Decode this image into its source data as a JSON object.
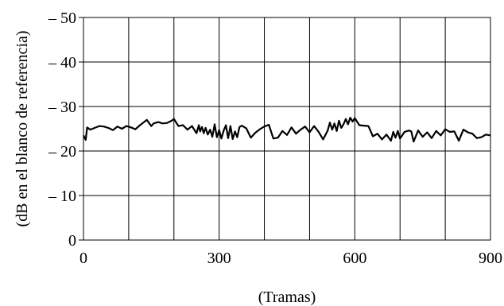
{
  "chart_data": {
    "type": "line",
    "title": "",
    "xlabel": "(Tramas)",
    "ylabel": "(dB en el blanco de referencia)",
    "xlim": [
      0,
      900
    ],
    "ylim": [
      0,
      -50
    ],
    "grid": true,
    "x_ticks": [
      {
        "value": 0,
        "label": "0"
      },
      {
        "value": 300,
        "label": "300"
      },
      {
        "value": 600,
        "label": "600"
      },
      {
        "value": 900,
        "label": "900"
      }
    ],
    "y_ticks": [
      {
        "value": 0,
        "label": "0"
      },
      {
        "value": -10,
        "label": "– 10"
      },
      {
        "value": -20,
        "label": "– 20"
      },
      {
        "value": -30,
        "label": "– 30"
      },
      {
        "value": -40,
        "label": "– 40"
      },
      {
        "value": -50,
        "label": "– 50"
      }
    ],
    "series": [
      {
        "color": "#000000",
        "x": [
          0,
          5,
          8,
          15,
          25,
          35,
          45,
          55,
          65,
          75,
          85,
          95,
          105,
          115,
          125,
          130,
          140,
          150,
          155,
          165,
          175,
          185,
          195,
          200,
          210,
          220,
          230,
          240,
          250,
          255,
          258,
          262,
          266,
          270,
          275,
          280,
          285,
          290,
          295,
          300,
          305,
          310,
          315,
          320,
          325,
          330,
          335,
          340,
          345,
          350,
          360,
          370,
          380,
          390,
          400,
          410,
          420,
          430,
          440,
          450,
          460,
          470,
          480,
          490,
          500,
          510,
          520,
          530,
          540,
          545,
          550,
          555,
          560,
          565,
          570,
          575,
          580,
          585,
          590,
          595,
          600,
          610,
          620,
          630,
          640,
          650,
          660,
          670,
          680,
          685,
          690,
          695,
          700,
          710,
          720,
          725,
          730,
          740,
          750,
          760,
          770,
          780,
          790,
          800,
          810,
          820,
          830,
          840,
          850,
          860,
          870,
          880,
          890,
          900
        ],
        "y": [
          -23.5,
          -22.5,
          -25.3,
          -24.8,
          -25.2,
          -25.6,
          -25.5,
          -25.2,
          -24.7,
          -25.5,
          -25.0,
          -25.6,
          -25.3,
          -24.9,
          -25.8,
          -26.2,
          -27.0,
          -25.6,
          -26.2,
          -26.5,
          -26.2,
          -26.3,
          -26.8,
          -27.2,
          -25.6,
          -25.8,
          -24.8,
          -25.6,
          -24.0,
          -25.8,
          -24.4,
          -25.4,
          -24.0,
          -25.2,
          -23.7,
          -24.8,
          -23.2,
          -26.0,
          -23.1,
          -24.7,
          -22.8,
          -24.6,
          -25.8,
          -22.9,
          -25.6,
          -22.7,
          -24.4,
          -23.1,
          -25.4,
          -25.7,
          -25.1,
          -23.0,
          -24.1,
          -24.9,
          -25.5,
          -25.9,
          -22.8,
          -23.0,
          -24.5,
          -23.6,
          -25.3,
          -23.9,
          -24.8,
          -25.5,
          -24.2,
          -25.6,
          -24.3,
          -22.6,
          -24.6,
          -26.4,
          -24.8,
          -26.2,
          -24.5,
          -26.8,
          -25.2,
          -26.0,
          -27.2,
          -26.0,
          -27.5,
          -26.6,
          -27.4,
          -25.8,
          -25.7,
          -25.6,
          -23.3,
          -23.9,
          -22.6,
          -23.7,
          -22.3,
          -24.3,
          -23.0,
          -24.5,
          -22.8,
          -24.3,
          -24.6,
          -24.4,
          -22.1,
          -24.6,
          -23.2,
          -24.2,
          -22.9,
          -24.5,
          -23.5,
          -24.9,
          -24.3,
          -24.4,
          -22.3,
          -24.8,
          -24.2,
          -23.9,
          -22.9,
          -23.1,
          -23.7,
          -23.5
        ]
      }
    ]
  }
}
